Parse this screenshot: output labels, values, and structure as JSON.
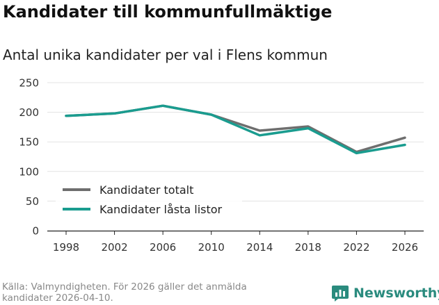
{
  "header": {
    "title": "Kandidater till kommunfullmäktige",
    "subtitle": "Antal unika kandidater per val i Flens kommun"
  },
  "chart_data": {
    "type": "line",
    "title": "Kandidater till kommunfullmäktige",
    "subtitle": "Antal unika kandidater per val i Flens kommun",
    "xlabel": "",
    "ylabel": "",
    "x": [
      "1998",
      "2002",
      "2006",
      "2010",
      "2014",
      "2018",
      "2022",
      "2026"
    ],
    "y_ticks": [
      "0",
      "50",
      "100",
      "150",
      "200",
      "250"
    ],
    "ylim": [
      0,
      250
    ],
    "grid": true,
    "legend_position": "bottom-left",
    "series": [
      {
        "name": "Kandidater totalt",
        "color": "#6e6e6e",
        "values": [
          194,
          198,
          211,
          196,
          169,
          176,
          133,
          157
        ]
      },
      {
        "name": "Kandidater låsta listor",
        "color": "#1a9c8f",
        "values": [
          194,
          198,
          211,
          196,
          161,
          173,
          131,
          145
        ]
      }
    ]
  },
  "footer": {
    "source_line1": "Källa: Valmyndigheten. För 2026 gäller det anmälda",
    "source_line2": "kandidater 2026-04-10."
  },
  "brand": {
    "name": "Newsworthy",
    "color": "#2a8b7e",
    "icon": "newsworthy-logo-icon"
  }
}
